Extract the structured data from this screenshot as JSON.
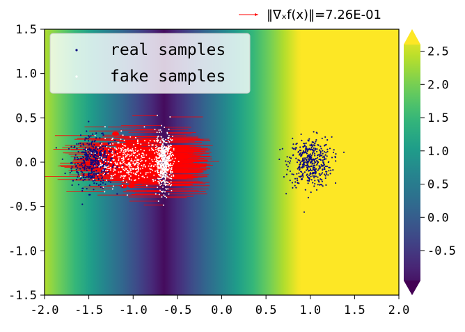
{
  "chart_data": {
    "type": "scatter",
    "background": "heatmap",
    "title": "",
    "xlabel": "",
    "ylabel": "",
    "xlim": [
      -2.0,
      2.0
    ],
    "ylim": [
      -1.5,
      1.5
    ],
    "grid": false,
    "xticks": [
      "-2.0",
      "-1.5",
      "-1.0",
      "-0.5",
      "0.0",
      "0.5",
      "1.0",
      "1.5",
      "2.0"
    ],
    "yticks": [
      "1.5",
      "1.0",
      "0.5",
      "0.0",
      "-0.5",
      "-1.0",
      "-1.5"
    ],
    "heatmap": {
      "colormap": "viridis",
      "vmin": -0.95,
      "vmax": 2.6,
      "min_at_x": -0.65,
      "extend": "both",
      "colorbar_ticks": [
        "2.5",
        "2.0",
        "1.5",
        "1.0",
        "0.5",
        "0.0",
        "-0.5"
      ]
    },
    "series": [
      {
        "name": "real samples",
        "color": "#0a0a80",
        "clusters": [
          {
            "center": [
              -1.45,
              0.0
            ],
            "spread": [
              0.12,
              0.14
            ]
          },
          {
            "center": [
              1.0,
              0.0
            ],
            "spread": [
              0.12,
              0.14
            ]
          }
        ]
      },
      {
        "name": "fake samples",
        "color": "#ffffff",
        "clusters": [
          {
            "center": [
              -0.65,
              0.0
            ],
            "spread": [
              0.05,
              0.15
            ]
          },
          {
            "center": [
              -1.05,
              0.0
            ],
            "spread": [
              0.18,
              0.14
            ]
          }
        ]
      }
    ],
    "arrows": {
      "color": "#ff0000",
      "label": "‖∇ₓf(x)‖=7.26E-01"
    },
    "legend_position": "upper-left"
  }
}
